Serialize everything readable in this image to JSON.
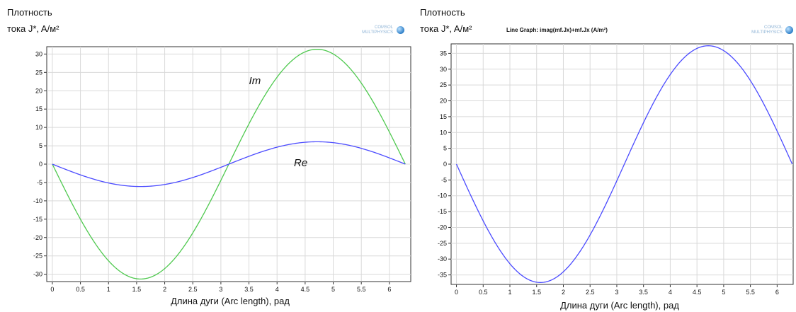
{
  "left": {
    "ylabel_line1": "Плотность",
    "ylabel_line2": "тока J*, A/м²",
    "xlabel": "Длина дуги (Arc length), рад",
    "logo_text": "COMSOL MULTIPHYSICS",
    "annotation_im": "Im",
    "annotation_re": "Re"
  },
  "right": {
    "ylabel_line1": "Плотность",
    "ylabel_line2": "тока J*, A/м²",
    "xlabel": "Длина дуги (Arc length), рад",
    "title": "Line Graph: imag(mf.Jx)+mf.Jx (A/m²)",
    "logo_text": "COMSOL MULTIPHYSICS"
  },
  "chart_data": [
    {
      "type": "line",
      "xlabel": "Длина дуги (Arc length), рад",
      "ylabel": "Плотность тока J*, A/м²",
      "xlim": [
        -0.1,
        6.38
      ],
      "ylim": [
        -32,
        32
      ],
      "xticks": [
        0,
        0.5,
        1,
        1.5,
        2,
        2.5,
        3,
        3.5,
        4,
        4.5,
        5,
        5.5,
        6
      ],
      "yticks": [
        -30,
        -25,
        -20,
        -15,
        -10,
        -5,
        0,
        5,
        10,
        15,
        20,
        25,
        30
      ],
      "grid": true,
      "series": [
        {
          "name": "Im",
          "color": "#4fc94f",
          "function": "sin",
          "amplitude": -31.3,
          "x": [
            0,
            0.785,
            1.571,
            2.356,
            3.142,
            3.927,
            4.712,
            5.498,
            6.283
          ],
          "y": [
            0,
            -22.1,
            -31.3,
            -22.1,
            0,
            22.1,
            31.3,
            22.1,
            0
          ]
        },
        {
          "name": "Re",
          "color": "#4b4bff",
          "function": "sin",
          "amplitude": -6.1,
          "x": [
            0,
            0.785,
            1.571,
            2.356,
            3.142,
            3.927,
            4.712,
            5.498,
            6.283
          ],
          "y": [
            0,
            -4.3,
            -6.1,
            -4.3,
            0,
            4.3,
            6.1,
            4.3,
            0
          ]
        }
      ]
    },
    {
      "type": "line",
      "title": "Line Graph: imag(mf.Jx)+mf.Jx (A/m²)",
      "xlabel": "Длина дуги (Arc length), рад",
      "ylabel": "Плотность тока J*, A/м²",
      "xlim": [
        -0.1,
        6.3
      ],
      "ylim": [
        -38,
        38
      ],
      "xticks": [
        0,
        0.5,
        1,
        1.5,
        2,
        2.5,
        3,
        3.5,
        4,
        4.5,
        5,
        5.5,
        6
      ],
      "yticks": [
        -35,
        -30,
        -25,
        -20,
        -15,
        -10,
        -5,
        0,
        5,
        10,
        15,
        20,
        25,
        30,
        35
      ],
      "grid": true,
      "series": [
        {
          "color": "#4b4bff",
          "function": "sin",
          "amplitude": -37.4,
          "x": [
            0,
            0.785,
            1.571,
            2.356,
            3.142,
            3.927,
            4.712,
            5.498,
            6.283
          ],
          "y": [
            0,
            -26.4,
            -37.4,
            -26.4,
            0,
            26.4,
            37.4,
            26.4,
            0
          ]
        }
      ]
    }
  ]
}
